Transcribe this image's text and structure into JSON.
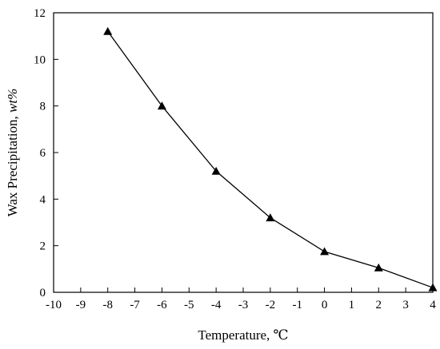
{
  "chart_data": {
    "type": "line",
    "title": "",
    "xlabel": "Temperature, ℃",
    "ylabel_main": "Wax Precipitation, ",
    "ylabel_unit": "wt%",
    "xlim": [
      -10,
      4
    ],
    "ylim": [
      0,
      12
    ],
    "xticks": [
      -10,
      -9,
      -8,
      -7,
      -6,
      -5,
      -4,
      -3,
      -2,
      -1,
      0,
      1,
      2,
      3,
      4
    ],
    "yticks": [
      0,
      2,
      4,
      6,
      8,
      10,
      12
    ],
    "grid": false,
    "marker": "triangle",
    "series": [
      {
        "x": [
          -8,
          -6,
          -4,
          -2,
          0,
          2,
          4
        ],
        "y": [
          11.2,
          8.0,
          5.2,
          3.2,
          1.75,
          1.05,
          0.2
        ]
      }
    ]
  }
}
